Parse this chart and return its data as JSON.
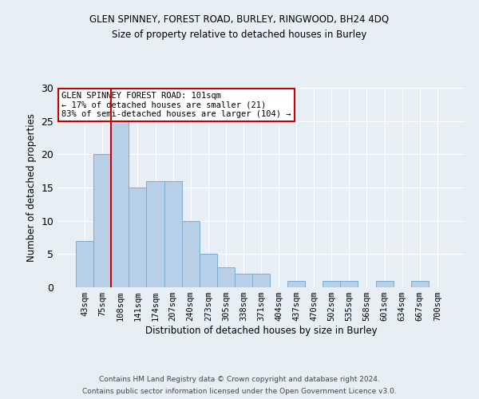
{
  "title1": "GLEN SPINNEY, FOREST ROAD, BURLEY, RINGWOOD, BH24 4DQ",
  "title2": "Size of property relative to detached houses in Burley",
  "xlabel": "Distribution of detached houses by size in Burley",
  "ylabel": "Number of detached properties",
  "categories": [
    "43sqm",
    "75sqm",
    "108sqm",
    "141sqm",
    "174sqm",
    "207sqm",
    "240sqm",
    "273sqm",
    "305sqm",
    "338sqm",
    "371sqm",
    "404sqm",
    "437sqm",
    "470sqm",
    "502sqm",
    "535sqm",
    "568sqm",
    "601sqm",
    "634sqm",
    "667sqm",
    "700sqm"
  ],
  "values": [
    7,
    20,
    25,
    15,
    16,
    16,
    10,
    5,
    3,
    2,
    2,
    0,
    1,
    0,
    1,
    1,
    0,
    1,
    0,
    1,
    0
  ],
  "bar_color": "#b8cfe8",
  "bar_edge_color": "#7aadd4",
  "subject_line_color": "#cc0000",
  "annotation_text": "GLEN SPINNEY FOREST ROAD: 101sqm\n← 17% of detached houses are smaller (21)\n83% of semi-detached houses are larger (104) →",
  "annotation_box_color": "#ffffff",
  "annotation_box_edge_color": "#cc0000",
  "ylim": [
    0,
    30
  ],
  "yticks": [
    0,
    5,
    10,
    15,
    20,
    25,
    30
  ],
  "footer1": "Contains HM Land Registry data © Crown copyright and database right 2024.",
  "footer2": "Contains public sector information licensed under the Open Government Licence v3.0.",
  "bg_color": "#e8eef5",
  "plot_bg_color": "#e8eef5"
}
